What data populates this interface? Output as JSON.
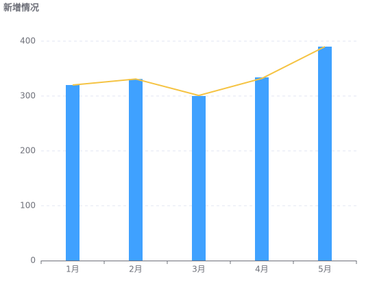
{
  "chart_data": {
    "type": "bar",
    "title": "新增情况",
    "categories": [
      "1月",
      "2月",
      "3月",
      "4月",
      "5月"
    ],
    "series": [
      {
        "type": "bar",
        "color": "#3fa1ff",
        "values": [
          320,
          331,
          300,
          334,
          390
        ]
      },
      {
        "type": "line",
        "color": "#f5c342",
        "values": [
          320,
          331,
          301,
          332,
          390
        ]
      }
    ],
    "ylim": [
      0,
      400
    ],
    "yticks": [
      0,
      100,
      200,
      300,
      400
    ],
    "grid": true
  }
}
